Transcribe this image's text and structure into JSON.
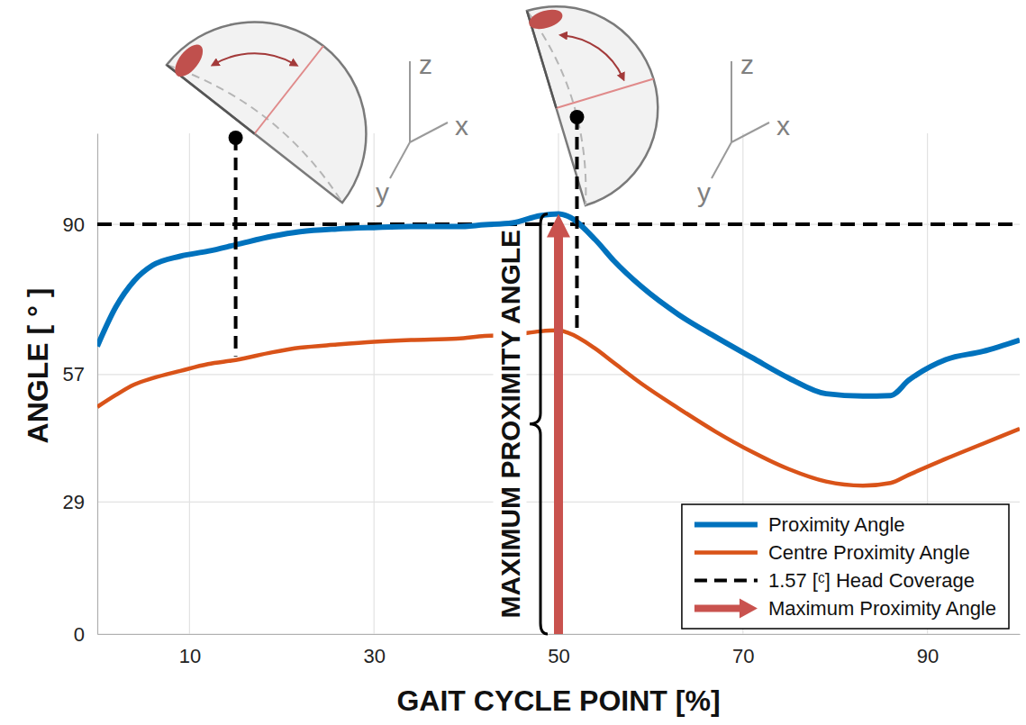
{
  "chart_data": {
    "type": "line",
    "x_label": "GAIT CYCLE POINT [%]",
    "y_label": "ANGLE [ ° ]",
    "x": [
      0,
      2,
      4,
      6,
      9,
      12,
      15,
      19,
      22,
      26,
      30,
      34,
      39,
      42,
      45,
      48,
      50,
      51,
      54,
      56,
      59,
      63,
      67,
      71,
      75,
      79,
      83,
      86,
      88,
      92,
      96,
      100
    ],
    "series": [
      {
        "name": "Proximity Angle",
        "color": "#0072bd",
        "values": [
          63.2,
          71.8,
          77.6,
          81.0,
          83.0,
          84.1,
          85.5,
          87.4,
          88.4,
          89.0,
          89.3,
          89.5,
          89.5,
          89.9,
          90.3,
          91.9,
          92.3,
          91.8,
          86.6,
          82.0,
          76.3,
          70.2,
          65.3,
          60.7,
          56.2,
          52.8,
          52.3,
          52.4,
          55.8,
          60.3,
          62.1,
          64.6
        ]
      },
      {
        "name": "Centre Proximity Angle",
        "color": "#d95319",
        "values": [
          49.9,
          52.5,
          54.8,
          56.2,
          57.8,
          59.3,
          60.2,
          61.9,
          62.9,
          63.6,
          64.2,
          64.6,
          64.9,
          65.5,
          65.7,
          66.5,
          66.7,
          66.2,
          62.7,
          59.6,
          55.0,
          49.6,
          44.5,
          40.0,
          36.2,
          33.5,
          32.6,
          33.2,
          35.0,
          38.5,
          41.8,
          45.1
        ]
      }
    ],
    "reference_line": {
      "name": "1.57 [ᶜ] Head Coverage",
      "value": 90,
      "color": "#000000",
      "line_style": "dashed"
    },
    "maximum": {
      "name": "Maximum Proximity Angle",
      "label": "MAXIMUM PROXIMITY ANGLE",
      "x": 50,
      "value": 92.3,
      "color": "#c9524e"
    },
    "gait_markers": [
      {
        "x": 15,
        "value": 61
      },
      {
        "x": 52,
        "value": 66
      }
    ],
    "diagram_axes": [
      "z",
      "x",
      "y"
    ],
    "xlim": [
      0,
      100
    ],
    "xticks": [
      10,
      30,
      50,
      70,
      90
    ],
    "ylim": [
      0,
      110
    ],
    "yticks": [
      0,
      29,
      57,
      90
    ],
    "grid": true,
    "legend": "lower right"
  }
}
